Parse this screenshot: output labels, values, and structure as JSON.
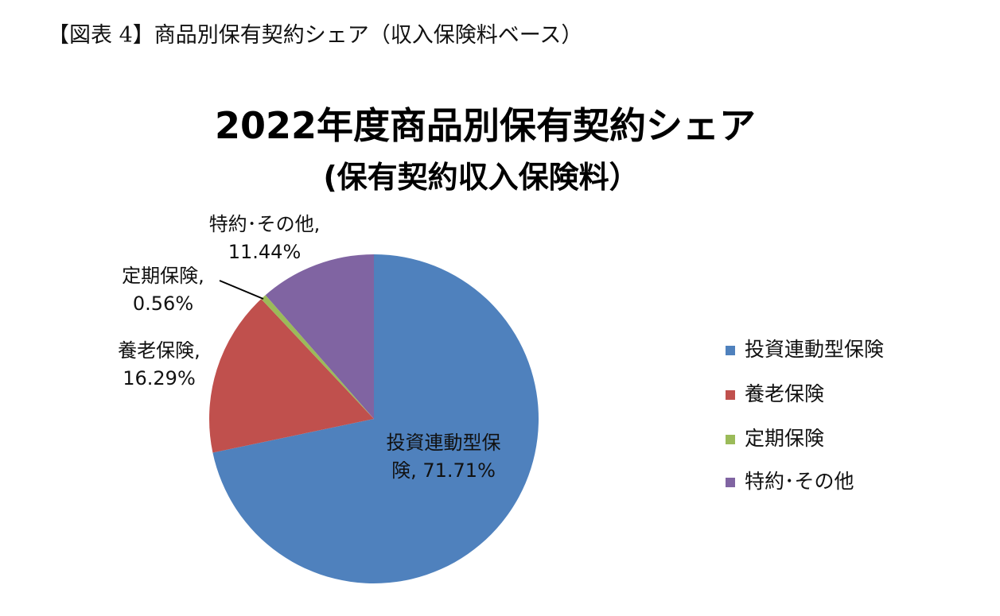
{
  "header": {
    "title": "【図表 4】商品別保有契約シェア（収入保険料ベース）"
  },
  "chart_data": {
    "type": "pie",
    "title": "2022年度商品別保有契約シェア",
    "subtitle": "(保有契約収入保険料）",
    "categories": [
      "投資連動型保険",
      "養老保険",
      "定期保険",
      "特約･その他"
    ],
    "values": [
      71.71,
      16.29,
      0.56,
      11.44
    ],
    "value_labels": [
      "投資連動型保険, 71.71%",
      "養老保険, 16.29%",
      "定期保険, 0.56%",
      "特約･その他, 11.44%"
    ],
    "colors": [
      "#4f81bd",
      "#c0504d",
      "#9bbb59",
      "#8064a2"
    ],
    "legend": "right"
  }
}
